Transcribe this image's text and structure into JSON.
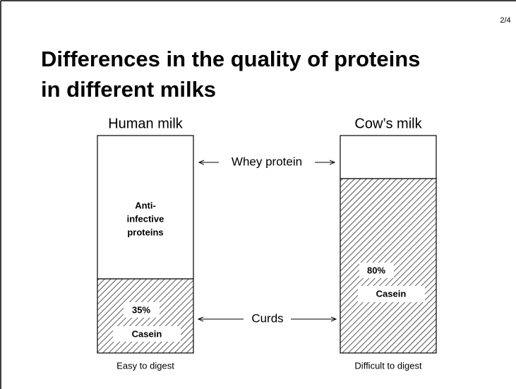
{
  "page_number": "2/4",
  "title": {
    "line1": "Differences in the quality of proteins",
    "line2": "in different milks"
  },
  "columns": [
    {
      "label": "Human milk",
      "whey_note": [
        "Anti-",
        "infective",
        "proteins"
      ],
      "casein_percent": "35%",
      "casein_label": "Casein",
      "footer": "Easy to digest"
    },
    {
      "label": "Cow’s milk",
      "casein_percent": "80%",
      "casein_label": "Casein",
      "footer": "Difficult to digest"
    }
  ],
  "arrows": {
    "whey": "Whey protein",
    "curds": "Curds"
  }
}
